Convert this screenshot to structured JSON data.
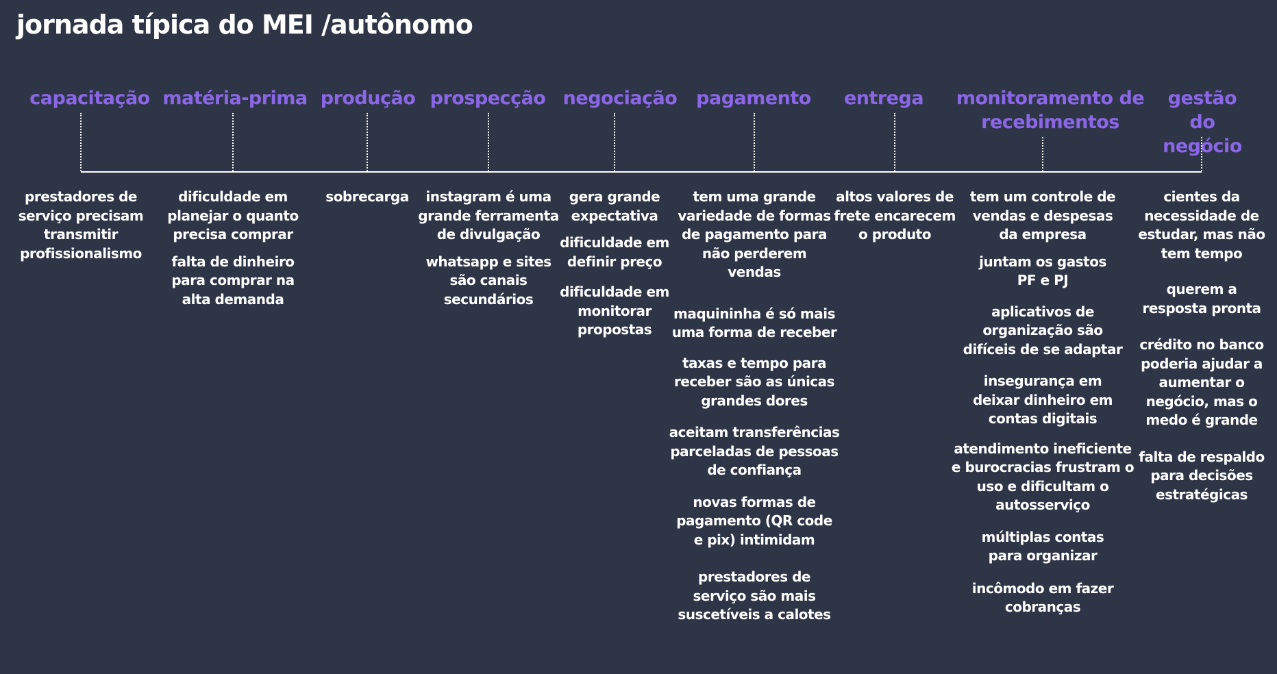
{
  "title": "jornada típica do MEI /autônomo",
  "accent_color": "#8b67e8",
  "background_color": "#2e3547",
  "stages": [
    {
      "label": [
        "capacitação"
      ],
      "notes": [
        [
          "prestadores de",
          "serviço precisam",
          "transmitir",
          "profissionalismo"
        ]
      ]
    },
    {
      "label": [
        "matéria-prima"
      ],
      "notes": [
        [
          "dificuldade em",
          "planejar o quanto",
          "precisa comprar"
        ],
        [
          "falta de dinheiro",
          "para comprar na",
          "alta demanda"
        ]
      ]
    },
    {
      "label": [
        "produção"
      ],
      "notes": [
        [
          "sobrecarga"
        ]
      ]
    },
    {
      "label": [
        "prospecção"
      ],
      "notes": [
        [
          "instagram é uma",
          "grande ferramenta",
          "de divulgação"
        ],
        [
          "whatsapp e sites",
          "são canais",
          "secundários"
        ]
      ]
    },
    {
      "label": [
        "negociação"
      ],
      "notes": [
        [
          "gera grande",
          "expectativa"
        ],
        [
          "dificuldade em",
          "definir preço"
        ],
        [
          "dificuldade em",
          "monitorar",
          "propostas"
        ]
      ]
    },
    {
      "label": [
        "pagamento"
      ],
      "notes": [
        [
          "tem uma grande",
          "variedade de formas",
          "de pagamento para",
          "não perderem",
          "vendas"
        ],
        [
          "maquininha é só mais",
          "uma forma de receber"
        ],
        [
          "taxas  e tempo para",
          "receber são as únicas",
          "grandes dores"
        ],
        [
          "aceitam transferências",
          "parceladas de pessoas",
          "de confiança"
        ],
        [
          "novas formas de",
          "pagamento (QR code",
          "e pix) intimidam"
        ],
        [
          "prestadores de",
          "serviço são mais",
          "suscetíveis a calotes"
        ]
      ]
    },
    {
      "label": [
        "entrega"
      ],
      "notes": [
        [
          "altos valores de",
          "frete encarecem",
          "o produto"
        ]
      ]
    },
    {
      "label": [
        "monitoramento de",
        "recebimentos"
      ],
      "notes": [
        [
          "tem um controle de",
          "vendas e despesas",
          "da empresa"
        ],
        [
          "juntam os gastos",
          "PF e PJ"
        ],
        [
          "aplicativos de",
          "organização são",
          "difíceis de se adaptar"
        ],
        [
          "insegurança em",
          "deixar dinheiro em",
          "contas digitais"
        ],
        [
          "atendimento ineficiente",
          "e burocracias frustram o",
          "uso e dificultam o",
          "autosserviço"
        ],
        [
          "múltiplas contas",
          "para organizar"
        ],
        [
          "incômodo em fazer",
          "cobranças"
        ]
      ]
    },
    {
      "label": [
        "gestão do",
        "negócio"
      ],
      "notes": [
        [
          "cientes da",
          "necessidade de",
          "estudar, mas não",
          "tem tempo"
        ],
        [
          "querem a",
          "resposta pronta"
        ],
        [
          "crédito no banco",
          "poderia ajudar a",
          "aumentar o",
          "negócio, mas o",
          "medo é grande"
        ],
        [
          "falta de respaldo",
          "para decisões",
          "estratégicas"
        ]
      ]
    }
  ]
}
